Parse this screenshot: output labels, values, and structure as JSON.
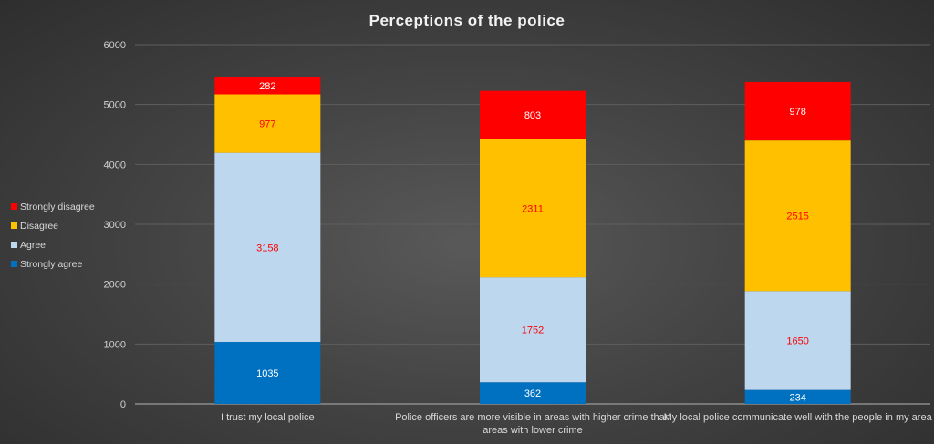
{
  "chart_data": {
    "type": "bar",
    "stacked": true,
    "title": "Perceptions of the police",
    "categories": [
      "I trust my local police",
      "Police officers are more visible in areas with higher crime than areas with lower crime",
      "My local police communicate well with the people in my area"
    ],
    "category_lines": [
      [
        "I trust my local police"
      ],
      [
        "Police officers are more visible in areas with higher crime than",
        "areas with lower crime"
      ],
      [
        "My local police communicate well with the people in my area"
      ]
    ],
    "series": [
      {
        "name": "Strongly agree",
        "color": "#0070C0",
        "label_color": "#FFFFFF",
        "values": [
          1035,
          362,
          234
        ]
      },
      {
        "name": "Agree",
        "color": "#BDD7EE",
        "label_color": "#FF0000",
        "values": [
          3158,
          1752,
          1650
        ]
      },
      {
        "name": "Disagree",
        "color": "#FFC000",
        "label_color": "#FF0000",
        "values": [
          977,
          2311,
          2515
        ]
      },
      {
        "name": "Strongly disagree",
        "color": "#FF0000",
        "label_color": "#FFFFFF",
        "values": [
          282,
          803,
          978
        ]
      }
    ],
    "ylim": [
      0,
      6000
    ],
    "yticks": [
      0,
      1000,
      2000,
      3000,
      4000,
      5000,
      6000
    ],
    "grid": true,
    "legend": "left"
  }
}
